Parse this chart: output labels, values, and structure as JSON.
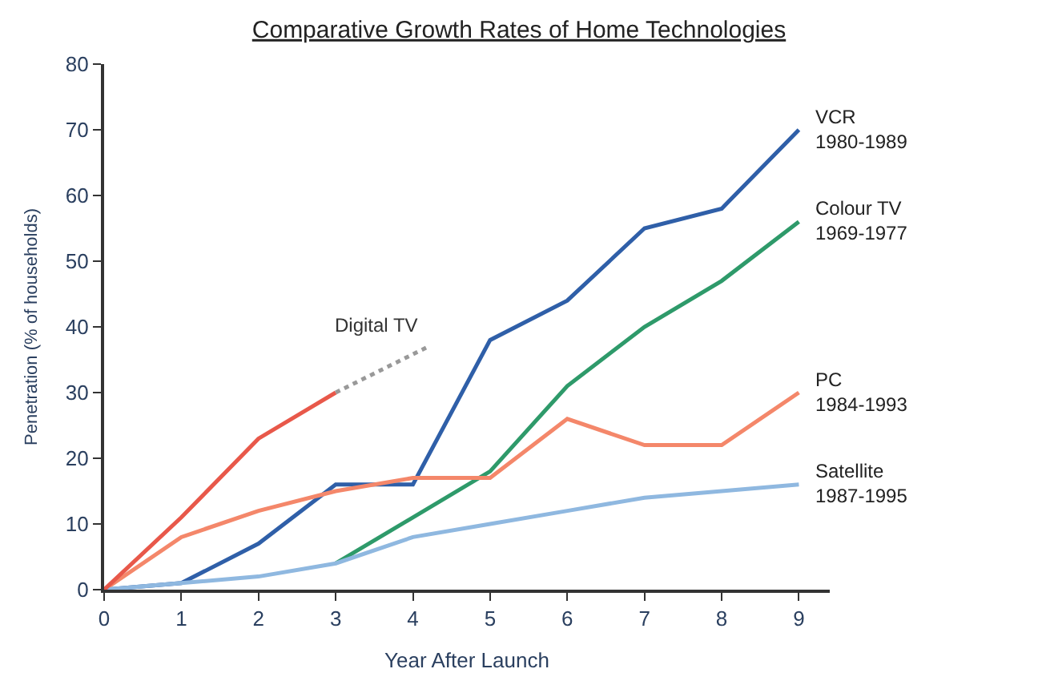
{
  "chart_data": {
    "type": "line",
    "title": "Comparative Growth Rates of Home Technologies",
    "xlabel": "Year After Launch",
    "ylabel": "Penetration (% of households)",
    "x": [
      0,
      1,
      2,
      3,
      4,
      5,
      6,
      7,
      8,
      9
    ],
    "series": [
      {
        "name": "VCR\n1980-1989",
        "color": "#2f5fa8",
        "values": [
          0,
          1,
          7,
          16,
          16,
          38,
          44,
          55,
          58,
          70
        ]
      },
      {
        "name": "Colour TV\n1969-1977",
        "color": "#2e9a6a",
        "x": [
          3,
          4,
          5,
          6,
          7,
          8,
          9
        ],
        "values": [
          4,
          11,
          18,
          31,
          40,
          47,
          56
        ]
      },
      {
        "name": "PC\n1984-1993",
        "color": "#f4876a",
        "values": [
          0,
          8,
          12,
          15,
          17,
          17,
          26,
          22,
          22,
          30
        ]
      },
      {
        "name": "Satellite\n1987-1995",
        "color": "#8fb8e0",
        "values": [
          0,
          1,
          2,
          4,
          8,
          10,
          12,
          14,
          15,
          16
        ]
      },
      {
        "color": "#e8584a",
        "x": [
          0,
          1,
          2,
          3
        ],
        "values": [
          0,
          11,
          23,
          30
        ]
      },
      {
        "color": "#999999",
        "x": [
          3,
          4.2
        ],
        "values": [
          30,
          37
        ],
        "line_style": "dotted"
      }
    ],
    "annotations": [
      {
        "text": "Digital TV",
        "x": 4.2,
        "y": 37
      }
    ],
    "xlim": [
      0,
      9.4
    ],
    "xticks": [
      0,
      1,
      2,
      3,
      4,
      5,
      6,
      7,
      8,
      9
    ],
    "ylim": [
      0,
      80
    ],
    "yticks": [
      0,
      10,
      20,
      30,
      40,
      50,
      60,
      70,
      80
    ],
    "legend": false,
    "marker": "none",
    "line_style": "solid"
  }
}
